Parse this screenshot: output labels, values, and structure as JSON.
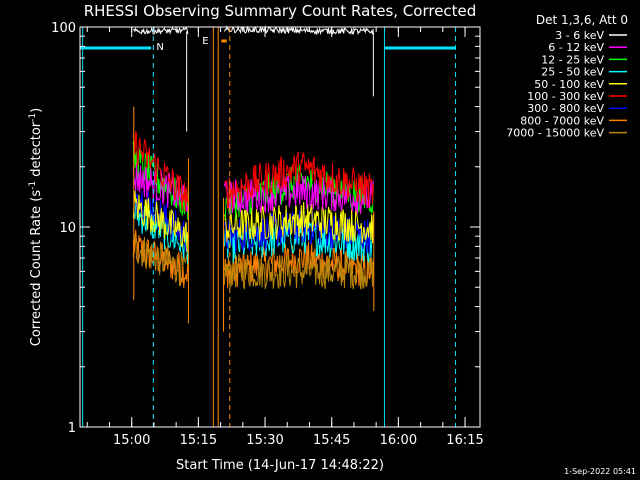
{
  "chart_data": {
    "type": "line",
    "title": "RHESSI Observing Summary Count Rates, Corrected",
    "xlabel": "Start Time (14-Jun-17 14:48:22)",
    "ylabel": "Corrected Count Rate (s",
    "ylabel_sup1": "-1",
    "ylabel_mid": " detector",
    "ylabel_sup2": "-1",
    "ylabel_end": ")",
    "yscale": "log",
    "ylim": [
      1,
      100
    ],
    "xlim_minutes": [
      0,
      90
    ],
    "x_ticks": [
      "15:00",
      "15:15",
      "15:30",
      "15:45",
      "16:00",
      "16:15"
    ],
    "x_tick_minutes": [
      11.633,
      26.633,
      41.633,
      56.633,
      71.633,
      86.633
    ],
    "y_ticks": [
      "1",
      "10",
      "100"
    ],
    "legend_title": "Det 1,3,6, Att 0",
    "series": [
      {
        "name": "3 - 6 keV",
        "color": "#ffffff",
        "values": [
          {
            "x": 12,
            "y": 95
          },
          {
            "x": 24,
            "y": 96
          },
          {
            "x": 33,
            "y": 97
          },
          {
            "x": 66,
            "y": 95
          }
        ]
      },
      {
        "name": "6 - 12 keV",
        "color": "#ff00ff",
        "values": [
          {
            "x": 12,
            "y": 18
          },
          {
            "x": 24,
            "y": 14
          },
          {
            "x": 33,
            "y": 14
          },
          {
            "x": 50,
            "y": 15
          },
          {
            "x": 66,
            "y": 14
          }
        ]
      },
      {
        "name": "12 - 25 keV",
        "color": "#00ff00",
        "values": [
          {
            "x": 12,
            "y": 22
          },
          {
            "x": 24,
            "y": 13
          },
          {
            "x": 33,
            "y": 13
          },
          {
            "x": 50,
            "y": 17
          },
          {
            "x": 66,
            "y": 14
          }
        ]
      },
      {
        "name": "25 - 50 keV",
        "color": "#00ffff",
        "values": [
          {
            "x": 12,
            "y": 12
          },
          {
            "x": 24,
            "y": 8
          },
          {
            "x": 33,
            "y": 8
          },
          {
            "x": 50,
            "y": 9
          },
          {
            "x": 66,
            "y": 8
          }
        ]
      },
      {
        "name": "50 - 100 keV",
        "color": "#ffff00",
        "values": [
          {
            "x": 12,
            "y": 13
          },
          {
            "x": 24,
            "y": 9
          },
          {
            "x": 33,
            "y": 10
          },
          {
            "x": 50,
            "y": 11
          },
          {
            "x": 66,
            "y": 10
          }
        ]
      },
      {
        "name": "100 - 300 keV",
        "color": "#ff0000",
        "values": [
          {
            "x": 12,
            "y": 26
          },
          {
            "x": 24,
            "y": 14
          },
          {
            "x": 33,
            "y": 15
          },
          {
            "x": 50,
            "y": 20
          },
          {
            "x": 66,
            "y": 15
          }
        ]
      },
      {
        "name": "300 - 800 keV",
        "color": "#0000ff",
        "values": [
          {
            "x": 12,
            "y": 15
          },
          {
            "x": 24,
            "y": 9
          },
          {
            "x": 33,
            "y": 9
          },
          {
            "x": 50,
            "y": 10
          },
          {
            "x": 66,
            "y": 9
          }
        ]
      },
      {
        "name": "800 - 7000 keV",
        "color": "#ff8000",
        "values": [
          {
            "x": 12,
            "y": 8
          },
          {
            "x": 24,
            "y": 6
          },
          {
            "x": 33,
            "y": 6
          },
          {
            "x": 50,
            "y": 7
          },
          {
            "x": 66,
            "y": 6
          }
        ]
      },
      {
        "name": "7000 - 15000 keV",
        "color": "#b8860b",
        "values": [
          {
            "x": 12,
            "y": 8
          },
          {
            "x": 24,
            "y": 6
          },
          {
            "x": 33,
            "y": 6
          },
          {
            "x": 66,
            "y": 6
          }
        ]
      }
    ],
    "flag_markers": [
      "N",
      "E"
    ],
    "footer": "1-Sep-2022 05:41"
  }
}
